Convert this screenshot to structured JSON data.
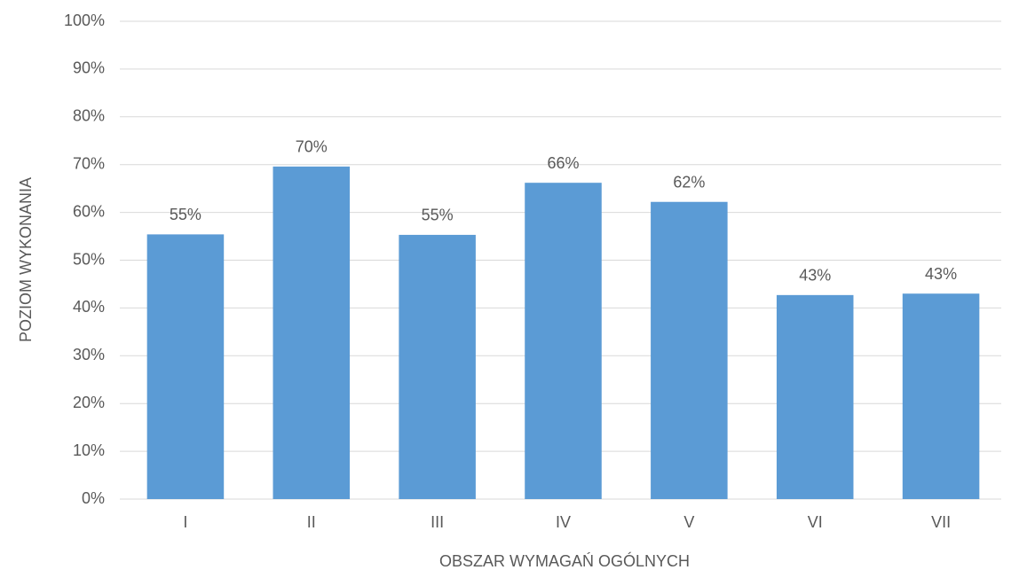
{
  "chart_data": {
    "type": "bar",
    "x_label": "OBSZAR WYMAGAŃ OGÓLNYCH",
    "y_label": "POZIOM WYKONANIA",
    "categories": [
      "I",
      "II",
      "III",
      "IV",
      "V",
      "VI",
      "VII"
    ],
    "values": [
      55.4,
      69.6,
      55.3,
      66.2,
      62.2,
      42.7,
      43.0
    ],
    "value_labels": [
      "55%",
      "70%",
      "55%",
      "66%",
      "62%",
      "43%",
      "43%"
    ],
    "color": "#5b9bd5",
    "ylim": [
      0,
      100
    ],
    "yticks": [
      {
        "value": 0,
        "label": "0%"
      },
      {
        "value": 10,
        "label": "10%"
      },
      {
        "value": 20,
        "label": "20%"
      },
      {
        "value": 30,
        "label": "30%"
      },
      {
        "value": 40,
        "label": "40%"
      },
      {
        "value": 50,
        "label": "50%"
      },
      {
        "value": 60,
        "label": "60%"
      },
      {
        "value": 70,
        "label": "70%"
      },
      {
        "value": 80,
        "label": "80%"
      },
      {
        "value": 90,
        "label": "90%"
      },
      {
        "value": 100,
        "label": "100%"
      }
    ],
    "grid": true
  }
}
